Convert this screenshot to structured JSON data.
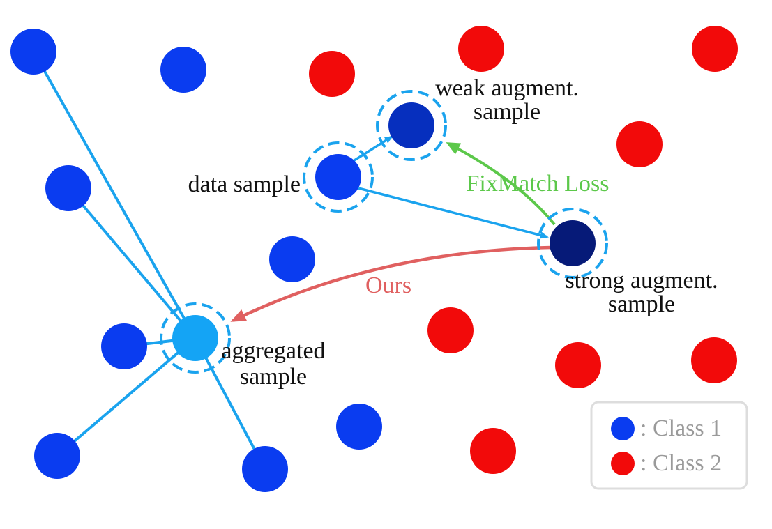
{
  "colors": {
    "class1": "#0a3cf0",
    "class2": "#f20a0a",
    "edge": "#1aa3ee",
    "weak": "#062fbe",
    "strong": "#061a78",
    "aggregated": "#14a4f5",
    "fixmatch": "#5cc84a",
    "ours": "#e06060",
    "text": "#111111",
    "legend_text": "#9a9a9a",
    "legend_border": "#dddddd"
  },
  "labels": {
    "weak_line1": "weak augment.",
    "weak_line2": "sample",
    "data_sample": "data sample",
    "fixmatch_loss": "FixMatch Loss",
    "strong_line1": "strong augment.",
    "strong_line2": "sample",
    "ours": "Ours",
    "aggregated_line1": "aggregated",
    "aggregated_line2": "sample"
  },
  "legend": {
    "class1": ": Class 1",
    "class2": ": Class 2"
  }
}
